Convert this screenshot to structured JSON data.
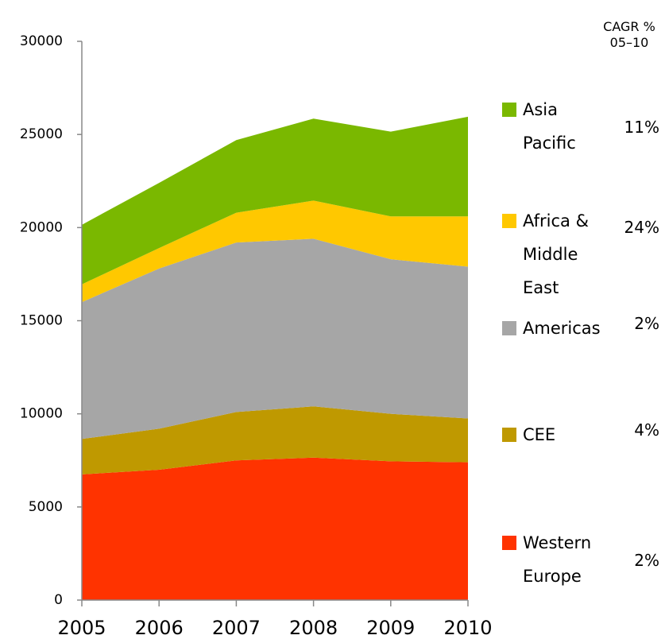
{
  "chart_data": {
    "type": "stacked_area",
    "categories": [
      "2005",
      "2006",
      "2007",
      "2008",
      "2009",
      "2010"
    ],
    "ylim": [
      0,
      30000
    ],
    "yticks": [
      0,
      5000,
      10000,
      15000,
      20000,
      25000,
      30000
    ],
    "cagr_title": "CAGR % 05–10",
    "series": [
      {
        "name": "Western Europe",
        "color": "#ff3300",
        "cagr": "2%",
        "values": [
          6750,
          7000,
          7500,
          7650,
          7450,
          7400
        ]
      },
      {
        "name": "CEE",
        "color": "#bf9900",
        "cagr": "4%",
        "values": [
          1900,
          2200,
          2600,
          2750,
          2550,
          2350
        ]
      },
      {
        "name": "Americas",
        "color": "#a6a6a6",
        "cagr": "2%",
        "values": [
          7350,
          8600,
          9100,
          9000,
          8300,
          8150
        ]
      },
      {
        "name": "Africa & Middle East",
        "color": "#ffc800",
        "cagr": "24%",
        "values": [
          950,
          1100,
          1600,
          2050,
          2300,
          2700
        ]
      },
      {
        "name": "Asia Pacific",
        "color": "#7ab800",
        "cagr": "11%",
        "values": [
          3200,
          3500,
          3900,
          4400,
          4550,
          5350
        ]
      }
    ]
  }
}
